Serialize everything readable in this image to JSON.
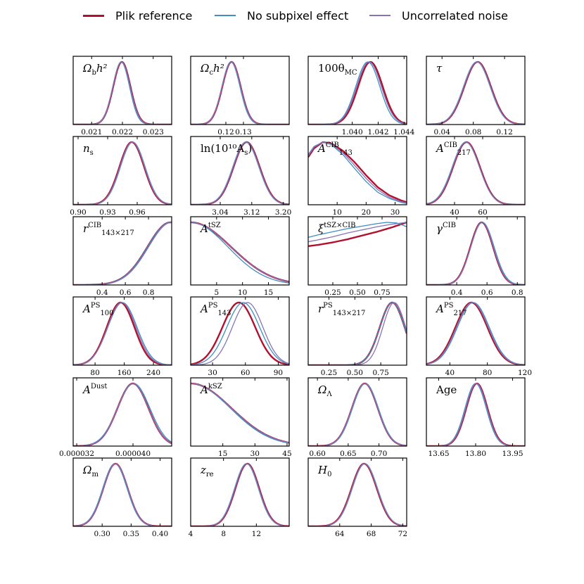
{
  "legend": {
    "items": [
      {
        "label": "Plik reference",
        "color": "#b2102f"
      },
      {
        "label": "No subpixel effect",
        "color": "#3f8fc2"
      },
      {
        "label": "Uncorrelated noise",
        "color": "#8874b5"
      }
    ]
  },
  "chart_data": [
    {
      "type": "line",
      "title": "Ω_b h²",
      "xlim": [
        0.0204,
        0.0236
      ],
      "xticks": [
        "0.021",
        "0.022",
        "0.023"
      ],
      "xtick_values": [
        0.021,
        0.022,
        0.023
      ],
      "series": [
        {
          "name": "Plik reference",
          "mean": 0.02198,
          "sigma": 0.00028
        },
        {
          "name": "No subpixel effect",
          "mean": 0.02196,
          "sigma": 0.00027
        },
        {
          "name": "Uncorrelated noise",
          "mean": 0.02197,
          "sigma": 0.00028
        }
      ]
    },
    {
      "type": "line",
      "title": "Ω_c h²",
      "xlim": [
        0.1,
        0.156
      ],
      "xticks": [
        "0.12",
        "0.13"
      ],
      "xtick_values": [
        0.12,
        0.13
      ],
      "series": [
        {
          "name": "Plik reference",
          "mean": 0.1232,
          "sigma": 0.0052
        },
        {
          "name": "No subpixel effect",
          "mean": 0.1229,
          "sigma": 0.0051
        },
        {
          "name": "Uncorrelated noise",
          "mean": 0.1231,
          "sigma": 0.0052
        }
      ]
    },
    {
      "type": "line",
      "title": "100θ_MC",
      "xlim": [
        1.0366,
        1.0442
      ],
      "xticks": [
        "1.040",
        "1.042",
        "1.044"
      ],
      "xtick_values": [
        1.04,
        1.042,
        1.044
      ],
      "series": [
        {
          "name": "Plik reference",
          "mean": 1.0414,
          "sigma": 0.00095
        },
        {
          "name": "No subpixel effect",
          "mean": 1.0412,
          "sigma": 0.00093
        },
        {
          "name": "Uncorrelated noise",
          "mean": 1.0413,
          "sigma": 0.00095
        }
      ]
    },
    {
      "type": "line",
      "title": "τ",
      "xlim": [
        0.02,
        0.146
      ],
      "xticks": [
        "0.04",
        "0.08",
        "0.12"
      ],
      "xtick_values": [
        0.04,
        0.08,
        0.12
      ],
      "series": [
        {
          "name": "Plik reference",
          "mean": 0.0855,
          "sigma": 0.017
        },
        {
          "name": "No subpixel effect",
          "mean": 0.0845,
          "sigma": 0.017
        },
        {
          "name": "Uncorrelated noise",
          "mean": 0.085,
          "sigma": 0.017
        }
      ]
    },
    {
      "type": "line",
      "title": "n_s",
      "xlim": [
        0.895,
        0.995
      ],
      "xticks": [
        "0.90",
        "0.93",
        "0.96"
      ],
      "xtick_values": [
        0.9,
        0.93,
        0.96
      ],
      "series": [
        {
          "name": "Plik reference",
          "mean": 0.9545,
          "sigma": 0.0125
        },
        {
          "name": "No subpixel effect",
          "mean": 0.9555,
          "sigma": 0.0125
        },
        {
          "name": "Uncorrelated noise",
          "mean": 0.955,
          "sigma": 0.0125
        }
      ]
    },
    {
      "type": "line",
      "title": "ln(10¹⁰ A_s)",
      "xlim": [
        2.965,
        3.215
      ],
      "xticks": [
        "3.04",
        "3.12",
        "3.20"
      ],
      "xtick_values": [
        3.04,
        3.12,
        3.2
      ],
      "series": [
        {
          "name": "Plik reference",
          "mean": 3.107,
          "sigma": 0.033
        },
        {
          "name": "No subpixel effect",
          "mean": 3.105,
          "sigma": 0.033
        },
        {
          "name": "Uncorrelated noise",
          "mean": 3.106,
          "sigma": 0.033
        }
      ]
    },
    {
      "type": "line",
      "title": "A^CIB_143",
      "xlim": [
        0,
        34
      ],
      "xticks": [
        "10",
        "20",
        "30"
      ],
      "xtick_values": [
        10,
        20,
        30
      ],
      "series": [
        {
          "name": "Plik reference",
          "skew": [
            [
              0,
              0.76
            ],
            [
              2,
              0.9
            ],
            [
              5,
              1.0
            ],
            [
              8,
              0.98
            ],
            [
              12,
              0.86
            ],
            [
              16,
              0.68
            ],
            [
              20,
              0.47
            ],
            [
              24,
              0.28
            ],
            [
              28,
              0.15
            ],
            [
              32,
              0.07
            ],
            [
              34,
              0.04
            ]
          ]
        },
        {
          "name": "No subpixel effect",
          "skew": [
            [
              0,
              0.8
            ],
            [
              2,
              0.93
            ],
            [
              5,
              1.0
            ],
            [
              8,
              0.96
            ],
            [
              12,
              0.8
            ],
            [
              16,
              0.58
            ],
            [
              20,
              0.37
            ],
            [
              24,
              0.2
            ],
            [
              28,
              0.1
            ],
            [
              32,
              0.04
            ],
            [
              34,
              0.02
            ]
          ]
        },
        {
          "name": "Uncorrelated noise",
          "skew": [
            [
              0,
              0.78
            ],
            [
              2,
              0.92
            ],
            [
              5,
              1.0
            ],
            [
              8,
              0.97
            ],
            [
              12,
              0.83
            ],
            [
              16,
              0.63
            ],
            [
              20,
              0.42
            ],
            [
              24,
              0.24
            ],
            [
              28,
              0.12
            ],
            [
              32,
              0.05
            ],
            [
              34,
              0.03
            ]
          ]
        }
      ]
    },
    {
      "type": "line",
      "title": "A^CIB_217",
      "xlim": [
        20,
        90
      ],
      "xticks": [
        "40",
        "60"
      ],
      "xtick_values": [
        40,
        60
      ],
      "series": [
        {
          "name": "Plik reference",
          "mean": 48.5,
          "sigma": 9.5
        },
        {
          "name": "No subpixel effect",
          "mean": 48,
          "sigma": 9.6
        },
        {
          "name": "Uncorrelated noise",
          "mean": 48.2,
          "sigma": 9.5
        }
      ]
    },
    {
      "type": "line",
      "title": "r^CIB_143×217",
      "xlim": [
        0.15,
        1.0
      ],
      "xticks": [
        "0.4",
        "0.6",
        "0.8"
      ],
      "xtick_values": [
        0.4,
        0.6,
        0.8
      ],
      "series": [
        {
          "name": "Plik reference",
          "mean": 0.99,
          "sigma": 0.2
        },
        {
          "name": "No subpixel effect",
          "mean": 0.99,
          "sigma": 0.2
        },
        {
          "name": "Uncorrelated noise",
          "mean": 1.0,
          "sigma": 0.2
        }
      ]
    },
    {
      "type": "line",
      "title": "A^tSZ",
      "xlim": [
        0,
        19
      ],
      "xticks": [
        "5",
        "10",
        "15"
      ],
      "xtick_values": [
        5,
        10,
        15
      ],
      "series": [
        {
          "name": "Plik reference",
          "mean": 0,
          "sigma": 7.8
        },
        {
          "name": "No subpixel effect",
          "mean": 0,
          "sigma": 7.2
        },
        {
          "name": "Uncorrelated noise",
          "mean": 0,
          "sigma": 7.8
        }
      ]
    },
    {
      "type": "line",
      "title": "ξ^{tSZ×CIB}",
      "xlim": [
        0,
        1
      ],
      "xticks": [
        "0.25",
        "0.50",
        "0.75"
      ],
      "xtick_values": [
        0.25,
        0.5,
        0.75
      ],
      "series": [
        {
          "name": "Plik reference",
          "skew": [
            [
              0,
              0.62
            ],
            [
              0.1,
              0.64
            ],
            [
              0.25,
              0.68
            ],
            [
              0.4,
              0.73
            ],
            [
              0.55,
              0.79
            ],
            [
              0.7,
              0.85
            ],
            [
              0.85,
              0.92
            ],
            [
              1.0,
              1.0
            ]
          ]
        },
        {
          "name": "No subpixel effect",
          "skew": [
            [
              0,
              0.76
            ],
            [
              0.1,
              0.8
            ],
            [
              0.25,
              0.85
            ],
            [
              0.4,
              0.9
            ],
            [
              0.55,
              0.94
            ],
            [
              0.7,
              0.98
            ],
            [
              0.8,
              1.0
            ],
            [
              0.9,
              0.99
            ],
            [
              1.0,
              0.93
            ]
          ]
        },
        {
          "name": "Uncorrelated noise",
          "skew": [
            [
              0,
              0.69
            ],
            [
              0.1,
              0.72
            ],
            [
              0.25,
              0.77
            ],
            [
              0.4,
              0.83
            ],
            [
              0.55,
              0.88
            ],
            [
              0.7,
              0.93
            ],
            [
              0.85,
              0.97
            ],
            [
              1.0,
              1.0
            ]
          ]
        }
      ]
    },
    {
      "type": "line",
      "title": "γ^CIB",
      "xlim": [
        0.2,
        0.85
      ],
      "xticks": [
        "0.4",
        "0.6",
        "0.8"
      ],
      "xtick_values": [
        0.4,
        0.6,
        0.8
      ],
      "series": [
        {
          "name": "Plik reference",
          "mean": 0.565,
          "sigma": 0.075
        },
        {
          "name": "No subpixel effect",
          "mean": 0.57,
          "sigma": 0.077
        },
        {
          "name": "Uncorrelated noise",
          "mean": 0.567,
          "sigma": 0.075
        }
      ]
    },
    {
      "type": "line",
      "title": "A^PS_100",
      "xlim": [
        20,
        290
      ],
      "xticks": [
        "80",
        "160",
        "240"
      ],
      "xtick_values": [
        80,
        160,
        240
      ],
      "series": [
        {
          "name": "Plik reference",
          "mean": 150,
          "sigma": 38
        },
        {
          "name": "No subpixel effect",
          "mean": 155,
          "sigma": 40
        },
        {
          "name": "Uncorrelated noise",
          "mean": 153,
          "sigma": 39
        }
      ]
    },
    {
      "type": "line",
      "title": "A^PS_143",
      "xlim": [
        10,
        100
      ],
      "xticks": [
        "30",
        "60",
        "90"
      ],
      "xtick_values": [
        30,
        60,
        90
      ],
      "series": [
        {
          "name": "Plik reference",
          "mean": 54,
          "sigma": 15
        },
        {
          "name": "No subpixel effect",
          "mean": 58,
          "sigma": 15
        },
        {
          "name": "Uncorrelated noise",
          "mean": 62,
          "sigma": 14
        }
      ]
    },
    {
      "type": "line",
      "title": "r^PS_143×217",
      "xlim": [
        0.05,
        1.0
      ],
      "xticks": [
        "0.25",
        "0.50",
        "0.75"
      ],
      "xtick_values": [
        0.25,
        0.5,
        0.75
      ],
      "series": [
        {
          "name": "Plik reference",
          "mean": 0.86,
          "sigma": 0.12
        },
        {
          "name": "No subpixel effect",
          "mean": 0.86,
          "sigma": 0.12
        },
        {
          "name": "Uncorrelated noise",
          "mean": 0.88,
          "sigma": 0.11
        }
      ]
    },
    {
      "type": "line",
      "title": "A^PS_217",
      "xlim": [
        15,
        120
      ],
      "xticks": [
        "40",
        "80",
        "120"
      ],
      "xtick_values": [
        40,
        80,
        120
      ],
      "series": [
        {
          "name": "Plik reference",
          "mean": 63,
          "sigma": 17
        },
        {
          "name": "No subpixel effect",
          "mean": 65,
          "sigma": 17
        },
        {
          "name": "Uncorrelated noise",
          "mean": 64,
          "sigma": 17
        }
      ]
    },
    {
      "type": "line",
      "title": "A^Dust",
      "xlim": [
        3.15e-05,
        4.55e-05
      ],
      "xticks": [
        "0.000032",
        "0.000040"
      ],
      "xtick_values": [
        3.2e-05,
        4e-05
      ],
      "series": [
        {
          "name": "Plik reference",
          "mean": 4e-05,
          "sigma": 2.2e-06
        },
        {
          "name": "No subpixel effect",
          "mean": 4.01e-05,
          "sigma": 2.3e-06
        },
        {
          "name": "Uncorrelated noise",
          "mean": 4e-05,
          "sigma": 2.2e-06
        }
      ]
    },
    {
      "type": "line",
      "title": "A^kSZ",
      "xlim": [
        0,
        46
      ],
      "xticks": [
        "15",
        "30",
        "45"
      ],
      "xtick_values": [
        15,
        30,
        45
      ],
      "series": [
        {
          "name": "Plik reference",
          "mean": 0,
          "sigma": 19
        },
        {
          "name": "No subpixel effect",
          "mean": 0,
          "sigma": 18.5
        },
        {
          "name": "Uncorrelated noise",
          "mean": 0,
          "sigma": 19
        }
      ]
    },
    {
      "type": "line",
      "title": "Ω_Λ",
      "xlim": [
        0.585,
        0.745
      ],
      "xticks": [
        "0.60",
        "0.65",
        "0.70"
      ],
      "xtick_values": [
        0.6,
        0.65,
        0.7
      ],
      "series": [
        {
          "name": "Plik reference",
          "mean": 0.677,
          "sigma": 0.021
        },
        {
          "name": "No subpixel effect",
          "mean": 0.678,
          "sigma": 0.021
        },
        {
          "name": "Uncorrelated noise",
          "mean": 0.677,
          "sigma": 0.021
        }
      ]
    },
    {
      "type": "line",
      "title": "Age",
      "xlim": [
        13.6,
        14.0
      ],
      "xticks": [
        "13.65",
        "13.80",
        "13.95"
      ],
      "xtick_values": [
        13.65,
        13.8,
        13.95
      ],
      "series": [
        {
          "name": "Plik reference",
          "mean": 13.805,
          "sigma": 0.043
        },
        {
          "name": "No subpixel effect",
          "mean": 13.8,
          "sigma": 0.043
        },
        {
          "name": "Uncorrelated noise",
          "mean": 13.803,
          "sigma": 0.043
        }
      ]
    },
    {
      "type": "line",
      "title": "Ω_m",
      "xlim": [
        0.25,
        0.42
      ],
      "xticks": [
        "0.30",
        "0.35",
        "0.40"
      ],
      "xtick_values": [
        0.3,
        0.35,
        0.4
      ],
      "series": [
        {
          "name": "Plik reference",
          "mean": 0.323,
          "sigma": 0.021
        },
        {
          "name": "No subpixel effect",
          "mean": 0.322,
          "sigma": 0.021
        },
        {
          "name": "Uncorrelated noise",
          "mean": 0.323,
          "sigma": 0.021
        }
      ]
    },
    {
      "type": "line",
      "title": "z_re",
      "xlim": [
        4,
        16
      ],
      "xticks": [
        "4",
        "8",
        "12"
      ],
      "xtick_values": [
        4,
        8,
        12
      ],
      "series": [
        {
          "name": "Plik reference",
          "mean": 10.9,
          "sigma": 1.45
        },
        {
          "name": "No subpixel effect",
          "mean": 10.8,
          "sigma": 1.45
        },
        {
          "name": "Uncorrelated noise",
          "mean": 10.85,
          "sigma": 1.45
        }
      ]
    },
    {
      "type": "line",
      "title": "H_0",
      "xlim": [
        60,
        72.5
      ],
      "xticks": [
        "64",
        "68",
        "72"
      ],
      "xtick_values": [
        64,
        68,
        72
      ],
      "series": [
        {
          "name": "Plik reference",
          "mean": 67.1,
          "sigma": 1.6
        },
        {
          "name": "No subpixel effect",
          "mean": 67.2,
          "sigma": 1.6
        },
        {
          "name": "Uncorrelated noise",
          "mean": 67.15,
          "sigma": 1.6
        }
      ]
    }
  ]
}
